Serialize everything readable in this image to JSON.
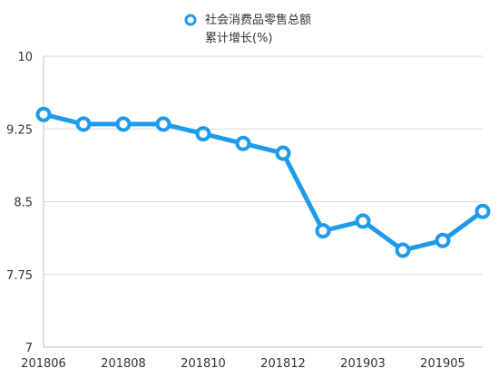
{
  "chart_data": {
    "type": "line",
    "legend": {
      "placement": "top-center",
      "entries": [
        "社会消费品零售总额",
        "累计增长(%)"
      ]
    },
    "categories": [
      "201806",
      "201807",
      "201808",
      "201809",
      "201810",
      "201811",
      "201812",
      "201902",
      "201903",
      "201904",
      "201905",
      "201906"
    ],
    "tick_labels_x": [
      "201806",
      "201808",
      "201810",
      "201812",
      "201903",
      "201905"
    ],
    "tick_labels_y": [
      "10",
      "9.25",
      "8.5",
      "7.75",
      "7"
    ],
    "series": [
      {
        "values": [
          9.4,
          9.3,
          9.3,
          9.3,
          9.2,
          9.1,
          9.0,
          8.2,
          8.3,
          8.0,
          8.1,
          8.4
        ]
      }
    ],
    "ylim": [
      7,
      10
    ],
    "yticks": [
      7,
      7.75,
      8.5,
      9.25,
      10
    ],
    "grid": true,
    "colors": {
      "series": "#1e9be9",
      "grid": "#d9d9d9"
    }
  }
}
